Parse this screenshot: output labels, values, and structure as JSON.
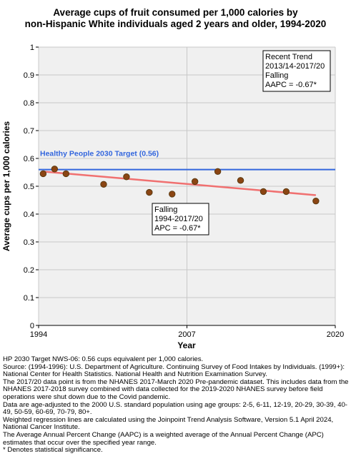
{
  "title_lines": [
    "Average cups of fruit consumed per 1,000 calories by",
    "non-Hispanic White individuals aged 2 years and older, 1994-2020"
  ],
  "notes": [
    "HP 2030 Target NWS-06: 0.56 cups equivalent per 1,000 calories.",
    "Source: (1994-1996): U.S. Department of Agriculture. Continuing Survey of Food Intakes by Individuals. (1999+): National Center for Health Statistics. National Health and Nutrition Examination Survey.",
    "The 2017/20 data point is from the NHANES 2017-March 2020 Pre-pandemic dataset. This includes data from the NHANES 2017-2018 survey combined with data collected for the 2019-2020 NHANES survey before field operations were shut down due to the Covid pandemic.",
    "Data are age-adjusted to the 2000 U.S. standard population using age groups: 2-5, 6-11, 12-19, 20-29, 30-39, 40-49, 50-59, 60-69, 70-79, 80+.",
    "Weighted regression lines are calculated using the Joinpoint Trend Analysis Software, Version 5.1 April 2024, National Cancer Institute.",
    "The Average Annual Percent Change (AAPC) is a weighted average of the Annual Percent Change (APC) estimates that occur over the specified year range.",
    "* Denotes statistical significance."
  ],
  "chart_data": {
    "type": "scatter",
    "xlabel": "Year",
    "ylabel": "Average cups per 1,000 calories",
    "xlim": [
      1994,
      2020
    ],
    "ylim": [
      0,
      1
    ],
    "x_ticks": [
      "1994",
      "2007",
      "2020"
    ],
    "y_ticks": [
      "0",
      "0.1",
      "0.2",
      "0.3",
      "0.4",
      "0.5",
      "0.6",
      "0.7",
      "0.8",
      "0.9",
      "1"
    ],
    "grid": true,
    "points": [
      {
        "x": 1994.4,
        "y": 0.545
      },
      {
        "x": 1995.4,
        "y": 0.562
      },
      {
        "x": 1996.4,
        "y": 0.545
      },
      {
        "x": 1999.7,
        "y": 0.507
      },
      {
        "x": 2001.7,
        "y": 0.534
      },
      {
        "x": 2003.7,
        "y": 0.478
      },
      {
        "x": 2005.7,
        "y": 0.472
      },
      {
        "x": 2007.7,
        "y": 0.517
      },
      {
        "x": 2009.7,
        "y": 0.553
      },
      {
        "x": 2011.7,
        "y": 0.521
      },
      {
        "x": 2013.7,
        "y": 0.481
      },
      {
        "x": 2015.7,
        "y": 0.481
      },
      {
        "x": 2018.3,
        "y": 0.447
      }
    ],
    "trend_line": {
      "x": [
        1994.4,
        2018.3
      ],
      "y": [
        0.553,
        0.468
      ]
    },
    "target": {
      "value": 0.56,
      "label": "Healthy People 2030 Target (0.56)"
    },
    "annotations": [
      {
        "name": "recent-trend-box",
        "lines": [
          "Recent Trend",
          "2013/14-2017/20",
          "Falling",
          "AAPC = -0.67*"
        ]
      },
      {
        "name": "overall-trend-box",
        "lines": [
          "Falling",
          "1994-2017/20",
          "APC = -0.67*"
        ]
      }
    ],
    "colors": {
      "point_fill": "#8b4513",
      "point_stroke": "#5a3a10",
      "trend": "#f07070",
      "target": "#3366dd",
      "plot_bg": "#f0f0f0",
      "grid": "#c8c8c8"
    }
  }
}
